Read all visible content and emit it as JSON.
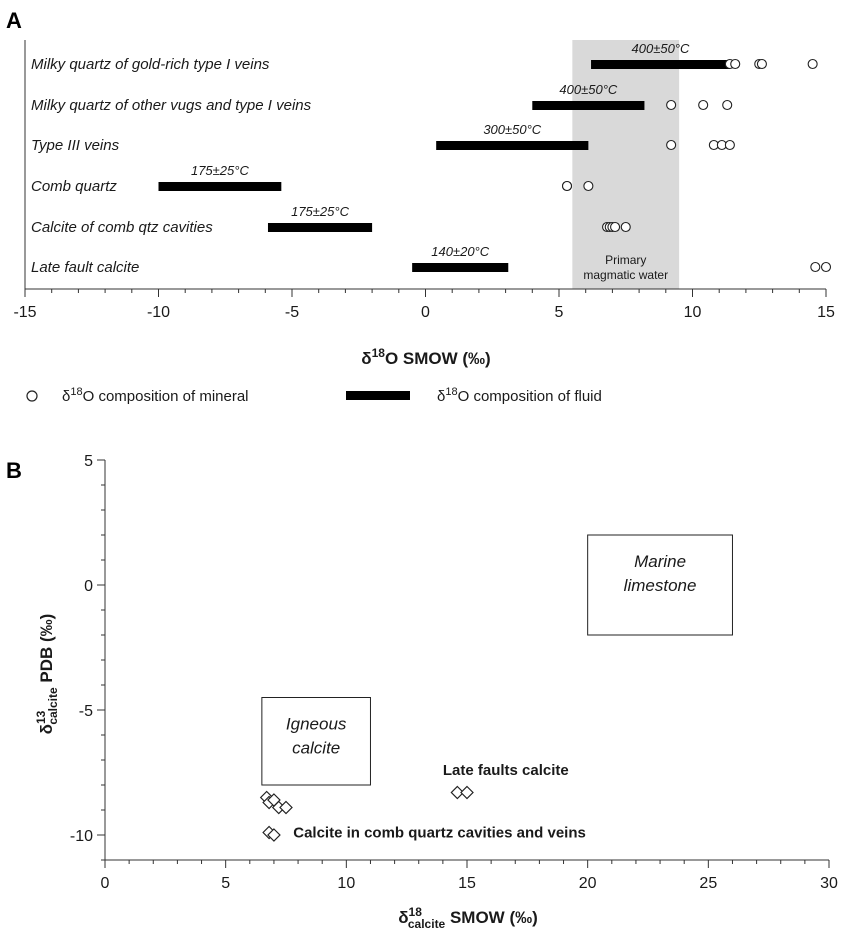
{
  "chart_data": [
    {
      "panel": "A",
      "type": "scatter",
      "xlim": [
        -15,
        15
      ],
      "xticks": [
        -15,
        -10,
        -5,
        0,
        5,
        10,
        15
      ],
      "xlabel_main": "δ",
      "xlabel_sup": "18",
      "xlabel_rest": "O SMOW (‰)",
      "region": {
        "x0": 5.5,
        "x1": 9.5,
        "label1": "Primary",
        "label2": "magmatic water",
        "color": "#d9d9d9"
      },
      "rows": [
        {
          "label": "Milky quartz of gold-rich type I veins",
          "fluid": [
            6.2,
            11.4
          ],
          "temp": "400±50°C",
          "minerals": [
            11.4,
            11.6,
            12.5,
            12.6,
            14.5
          ]
        },
        {
          "label": "Milky quartz of other vugs and type I veins",
          "fluid": [
            4.0,
            8.2
          ],
          "temp": "400±50°C",
          "minerals": [
            9.2,
            10.4,
            11.3
          ]
        },
        {
          "label": "Type III veins",
          "fluid": [
            0.4,
            6.1
          ],
          "temp": "300±50°C",
          "minerals": [
            9.2,
            10.8,
            11.1,
            11.4
          ]
        },
        {
          "label": "Comb quartz",
          "fluid": [
            -10.0,
            -5.4
          ],
          "temp": "175±25°C",
          "minerals": [
            5.3,
            5.3,
            6.1
          ]
        },
        {
          "label": "Calcite of comb qtz cavities",
          "fluid": [
            -5.9,
            -2.0
          ],
          "temp": "175±25°C",
          "minerals": [
            6.8,
            6.9,
            7.0,
            7.1,
            7.5
          ]
        },
        {
          "label": "Late fault calcite",
          "fluid": [
            -0.5,
            3.1
          ],
          "temp": "140±20°C",
          "minerals": [
            14.6,
            15.0
          ]
        }
      ]
    },
    {
      "panel": "B",
      "type": "scatter",
      "xlim": [
        0,
        30
      ],
      "ylim": [
        -11,
        5
      ],
      "xticks": [
        0,
        5,
        10,
        15,
        20,
        25,
        30
      ],
      "yticks": [
        5,
        0,
        -5,
        -10
      ],
      "xlabel_main": "δ",
      "xlabel_sup": "18",
      "xlabel_sub": "calcite",
      "xlabel_rest": " SMOW (‰)",
      "ylabel_main": "δ",
      "ylabel_sup": "13",
      "ylabel_sub": "calcite",
      "ylabel_rest": " PDB (‰)",
      "boxes": [
        {
          "label1": "Marine",
          "label2": "limestone",
          "x0": 20,
          "x1": 26,
          "y0": -2,
          "y1": 2
        },
        {
          "label1": "Igneous",
          "label2": "calcite",
          "x0": 6.5,
          "x1": 11,
          "y0": -8,
          "y1": -4.5
        }
      ],
      "points": [
        {
          "x": 6.7,
          "y": -8.5
        },
        {
          "x": 6.8,
          "y": -8.7
        },
        {
          "x": 7.0,
          "y": -8.6
        },
        {
          "x": 7.2,
          "y": -8.9
        },
        {
          "x": 7.5,
          "y": -8.9
        },
        {
          "x": 6.8,
          "y": -9.9
        },
        {
          "x": 7.0,
          "y": -10.0
        },
        {
          "x": 14.6,
          "y": -8.3
        },
        {
          "x": 15.0,
          "y": -8.3
        }
      ],
      "annotations": [
        {
          "text": "Late faults calcite",
          "x": 14,
          "y": -7.6
        },
        {
          "text": "Calcite in comb quartz cavities and veins",
          "x": 7.8,
          "y": -10.1
        }
      ]
    }
  ],
  "legend": {
    "mineral_main": "δ",
    "mineral_sup": "18",
    "mineral_rest": "O composition of mineral",
    "fluid_main": "δ",
    "fluid_sup": "18",
    "fluid_rest": "O composition of fluid"
  },
  "panel_labels": {
    "a": "A",
    "b": "B"
  }
}
